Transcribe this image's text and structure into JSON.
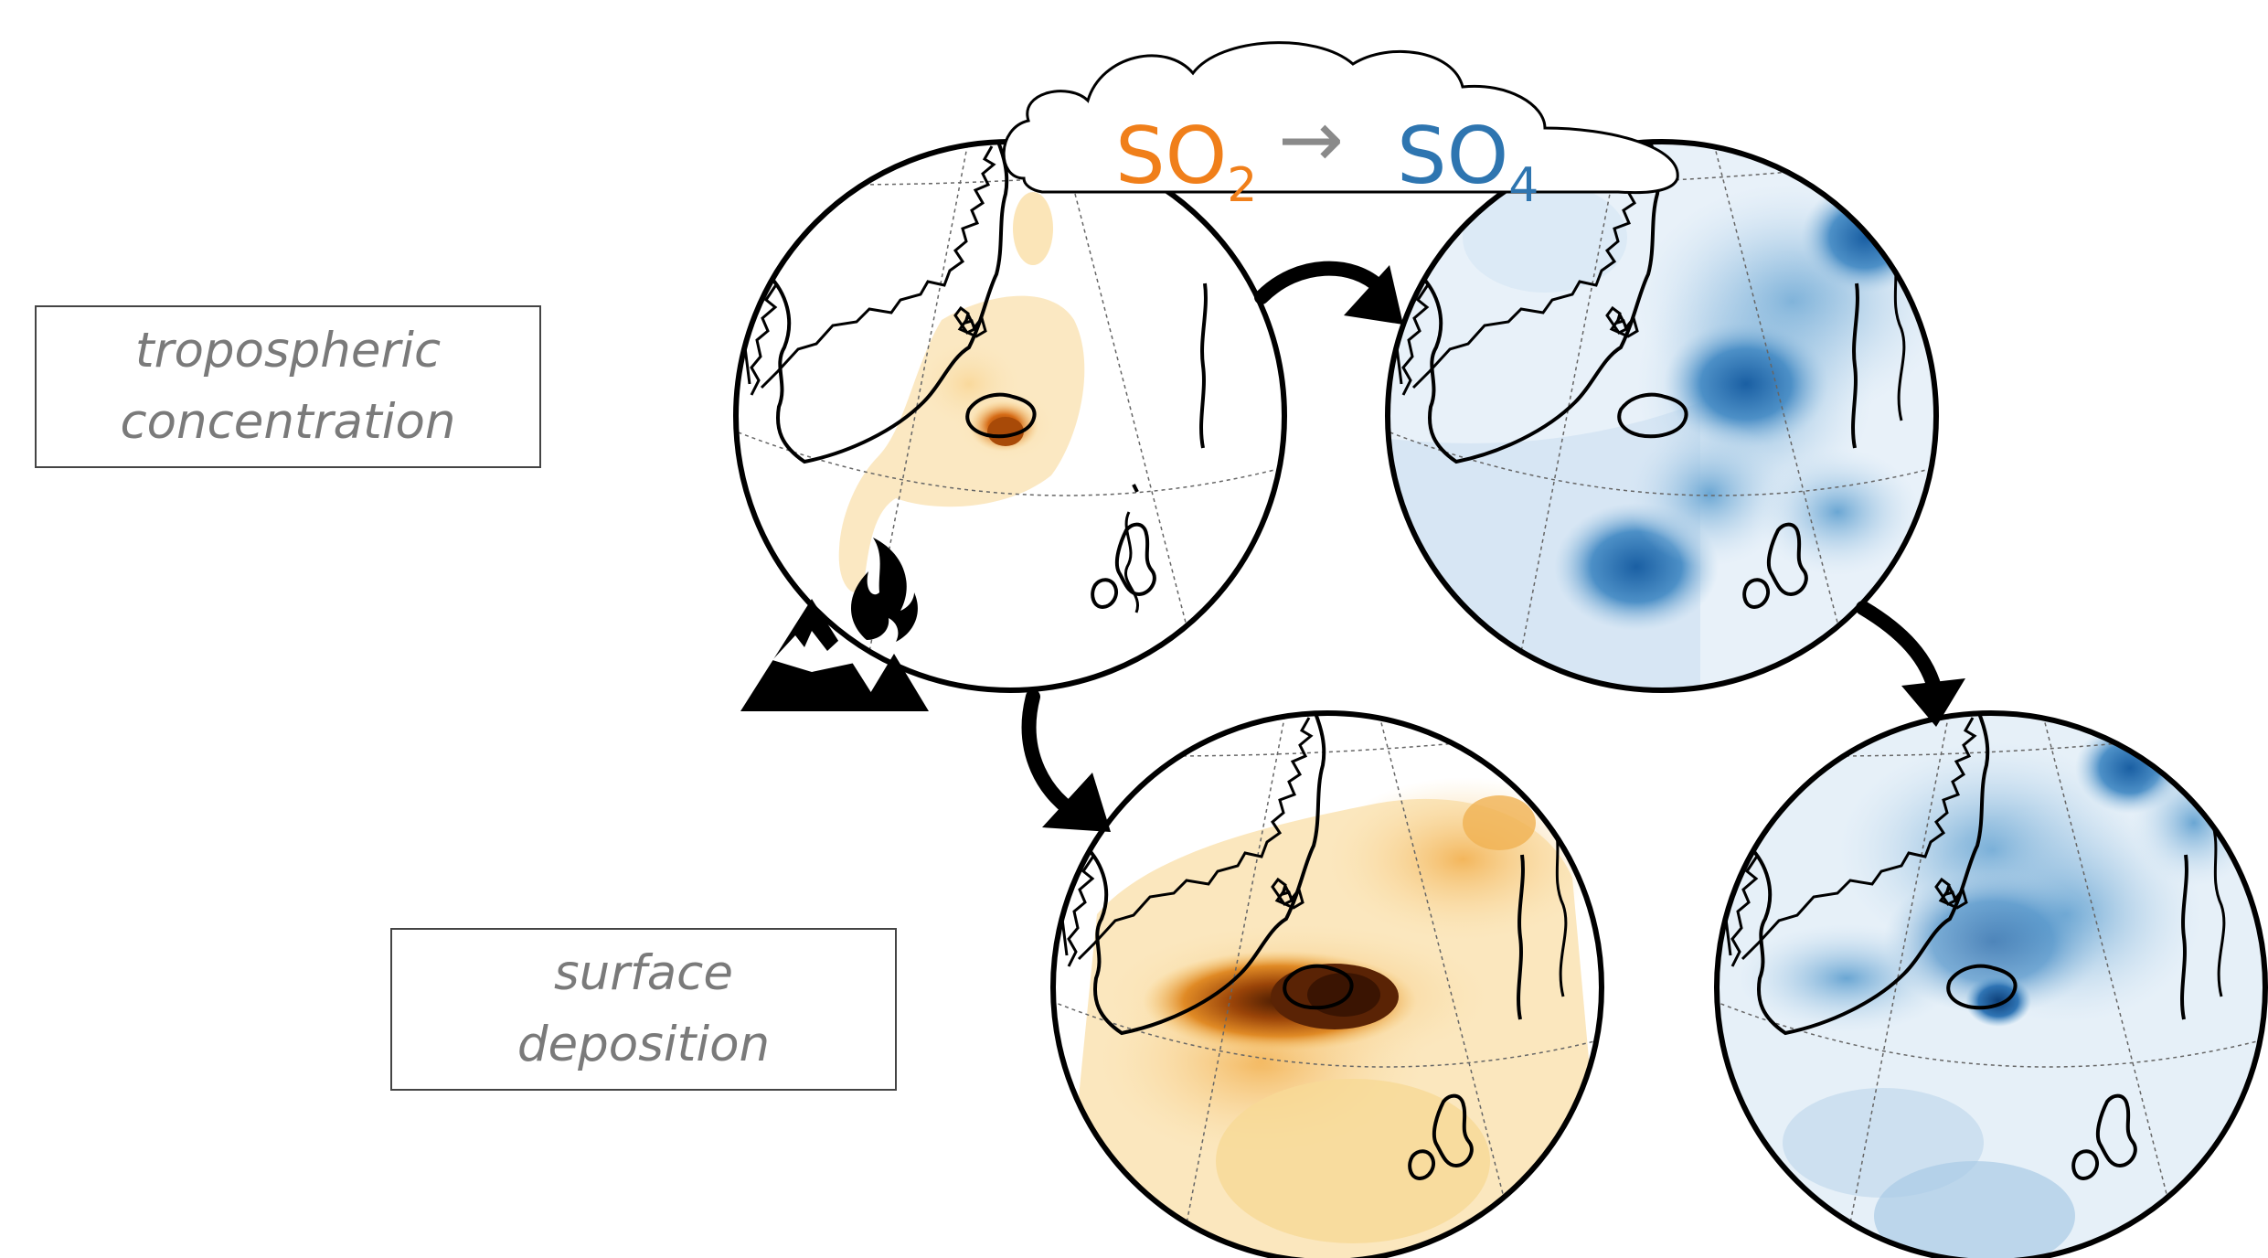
{
  "labels": {
    "tropospheric_line1": "tropospheric",
    "tropospheric_line2": "concentration",
    "surface_line1": "surface",
    "surface_line2": "deposition"
  },
  "cloud": {
    "so2_main": "SO",
    "so2_sub": "2",
    "arrow": "→",
    "so4_main": "SO",
    "so4_sub": "4"
  },
  "colors": {
    "so2": "#F07F1A",
    "so4": "#2E75B0",
    "arrow_grey": "#8A8A8A",
    "outline": "#000000",
    "label_text": "#7A7A7A"
  },
  "icons": {
    "volcano": "volcano-icon",
    "flow_arrows": "curved-arrow-icon"
  }
}
